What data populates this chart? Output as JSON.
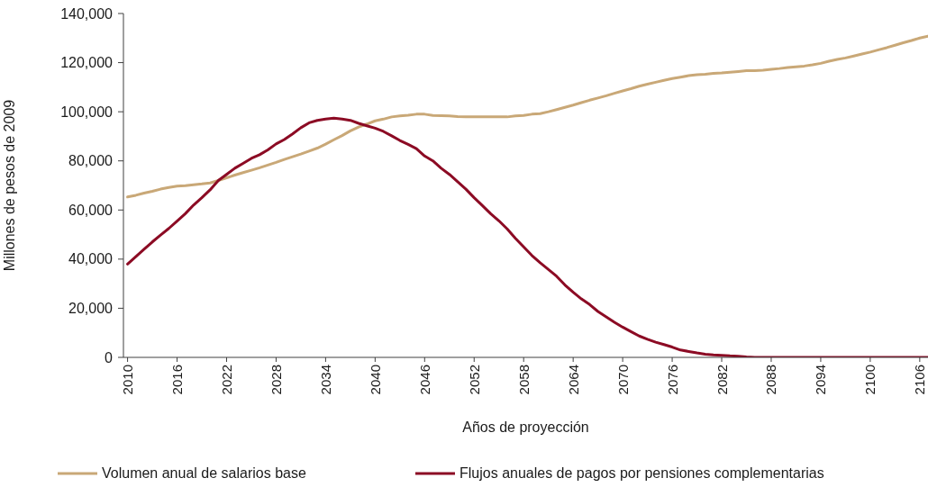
{
  "chart_data": {
    "type": "line",
    "xlabel": "Años de proyección",
    "ylabel": "Millones de pesos de 2009",
    "x": [
      2010,
      2011,
      2012,
      2013,
      2014,
      2015,
      2016,
      2017,
      2018,
      2019,
      2020,
      2021,
      2022,
      2023,
      2024,
      2025,
      2026,
      2027,
      2028,
      2029,
      2030,
      2031,
      2032,
      2033,
      2034,
      2035,
      2036,
      2037,
      2038,
      2039,
      2040,
      2041,
      2042,
      2043,
      2044,
      2045,
      2046,
      2047,
      2048,
      2049,
      2050,
      2051,
      2052,
      2053,
      2054,
      2055,
      2056,
      2057,
      2058,
      2059,
      2060,
      2061,
      2062,
      2063,
      2064,
      2065,
      2066,
      2067,
      2068,
      2069,
      2070,
      2071,
      2072,
      2073,
      2074,
      2075,
      2076,
      2077,
      2078,
      2079,
      2080,
      2081,
      2082,
      2083,
      2084,
      2085,
      2086,
      2087,
      2088,
      2089,
      2090,
      2091,
      2092,
      2093,
      2094,
      2095,
      2096,
      2097,
      2098,
      2099,
      2100,
      2101,
      2102,
      2103,
      2104,
      2105,
      2106,
      2107
    ],
    "series": [
      {
        "name": "Volumen anual de salarios base",
        "color": "#c9a877",
        "values": [
          65300,
          66000,
          66900,
          67600,
          68500,
          69200,
          69700,
          69900,
          70300,
          70600,
          71000,
          72000,
          73100,
          74200,
          75200,
          76200,
          77200,
          78300,
          79400,
          80600,
          81700,
          82800,
          84000,
          85200,
          86800,
          88600,
          90300,
          92200,
          93800,
          95000,
          96300,
          97000,
          97900,
          98300,
          98600,
          99000,
          99000,
          98500,
          98400,
          98300,
          98000,
          97900,
          97900,
          97900,
          97900,
          97900,
          97900,
          98300,
          98500,
          99000,
          99200,
          100000,
          100900,
          101800,
          102700,
          103700,
          104700,
          105600,
          106500,
          107500,
          108500,
          109400,
          110400,
          111200,
          112000,
          112800,
          113500,
          114100,
          114700,
          115100,
          115300,
          115600,
          115800,
          116100,
          116400,
          116700,
          116700,
          116900,
          117300,
          117600,
          118000,
          118300,
          118600,
          119100,
          119700,
          120600,
          121300,
          121900,
          122700,
          123500,
          124300,
          125200,
          126100,
          127100,
          128100,
          129000,
          130000,
          130800
        ]
      },
      {
        "name": "Flujos anuales de pagos por pensiones complementarias",
        "color": "#8c0b24",
        "values": [
          38000,
          41000,
          44000,
          47000,
          49800,
          52500,
          55500,
          58500,
          62000,
          65000,
          68200,
          72000,
          74500,
          77000,
          79000,
          81000,
          82500,
          84500,
          86900,
          88700,
          91000,
          93500,
          95500,
          96500,
          97000,
          97400,
          97000,
          96500,
          95300,
          94300,
          93300,
          92000,
          90200,
          88300,
          86700,
          85000,
          82000,
          80000,
          77000,
          74500,
          71500,
          68500,
          65000,
          61800,
          58500,
          55600,
          52300,
          48500,
          45000,
          41500,
          38500,
          35800,
          33000,
          29500,
          26500,
          23800,
          21500,
          18700,
          16500,
          14300,
          12300,
          10500,
          8700,
          7400,
          6200,
          5200,
          4200,
          3000,
          2400,
          1800,
          1300,
          1000,
          800,
          600,
          500,
          200,
          0,
          0,
          0,
          0,
          0,
          0,
          0,
          0,
          0,
          0,
          0,
          0,
          0,
          0,
          0,
          0,
          0,
          0,
          0,
          0,
          0,
          0
        ]
      }
    ],
    "xlim": [
      2009.5,
      2107
    ],
    "xticks": [
      2010,
      2016,
      2022,
      2028,
      2034,
      2040,
      2046,
      2052,
      2058,
      2064,
      2070,
      2076,
      2082,
      2088,
      2094,
      2100,
      2106
    ],
    "ylim": [
      0,
      140000
    ],
    "yticks": [
      0,
      {
        "value": 20000,
        "label": "20,000"
      },
      {
        "value": 40000,
        "label": "40,000"
      },
      {
        "value": 60000,
        "label": "60,000"
      },
      {
        "value": 80000,
        "label": "80,000"
      },
      {
        "value": 100000,
        "label": "100,000"
      },
      {
        "value": 120000,
        "label": "120,000"
      },
      {
        "value": 140000,
        "label": "140,000"
      }
    ],
    "grid": false,
    "legend": "bottom",
    "marker": "none",
    "line_style": "solid"
  }
}
